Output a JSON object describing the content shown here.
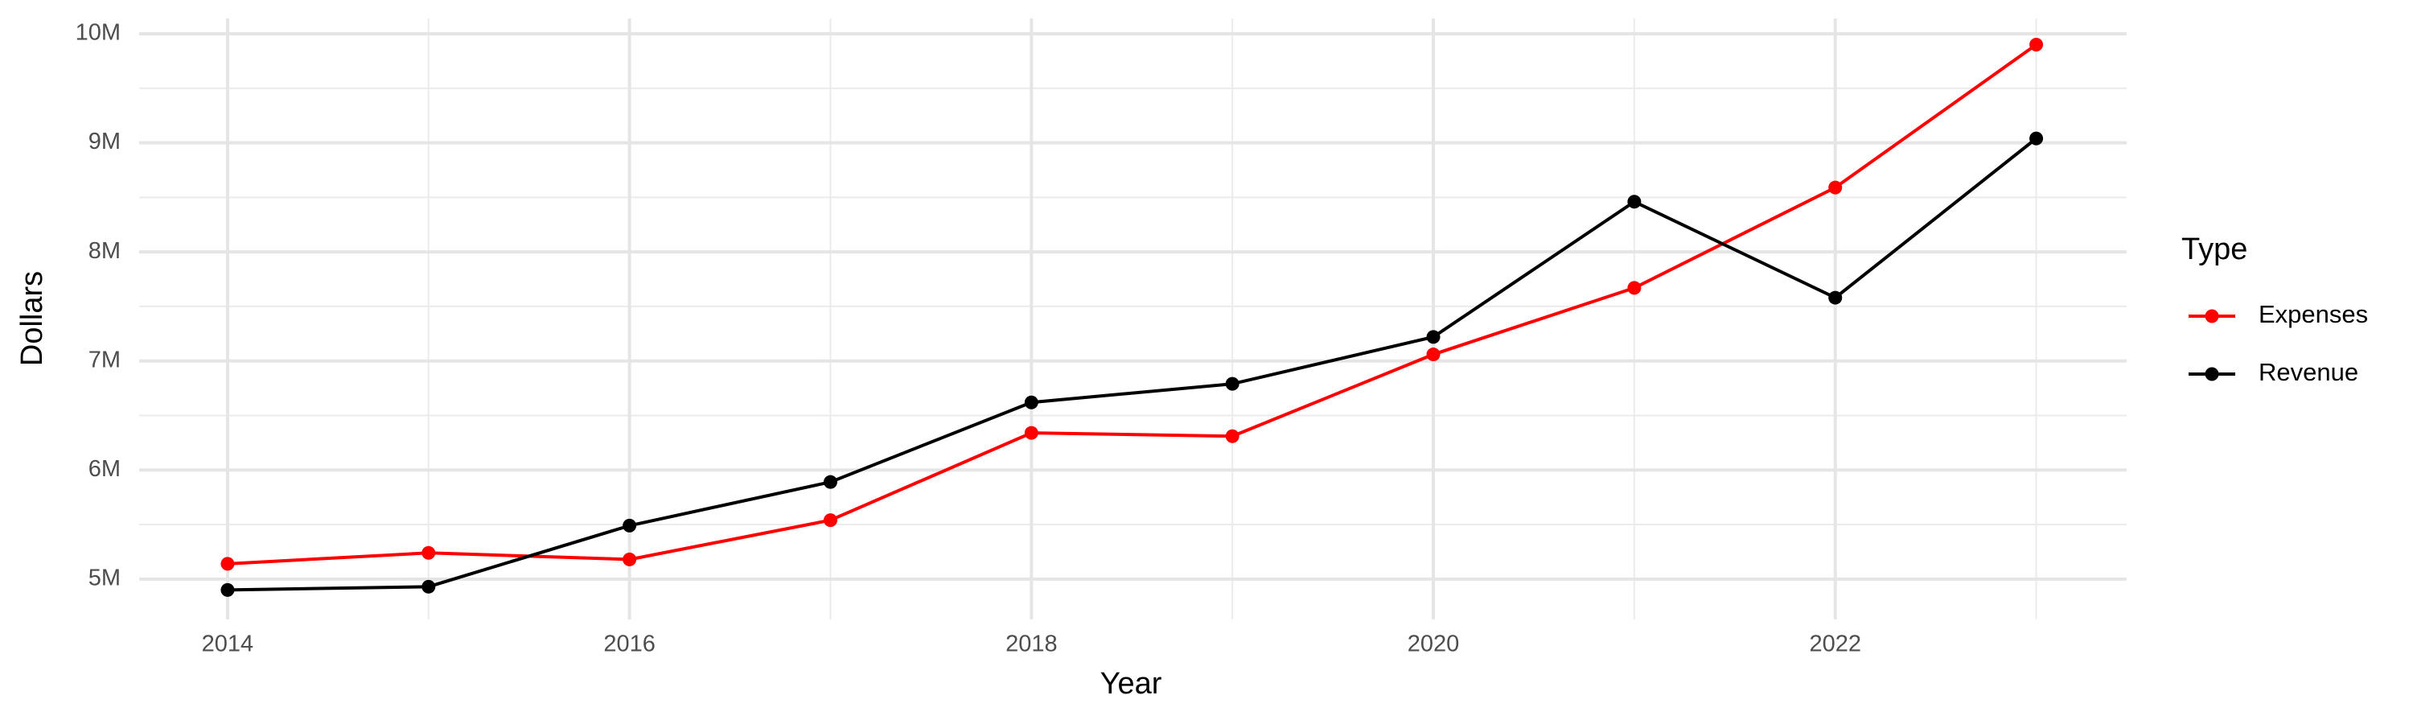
{
  "chart_data": {
    "type": "line",
    "x_label": "Year",
    "y_label": "Dollars",
    "legend_title": "Type",
    "legend": "right",
    "x": [
      2014,
      2015,
      2016,
      2017,
      2018,
      2019,
      2020,
      2021,
      2022,
      2023
    ],
    "series": [
      {
        "name": "Expenses",
        "color": "#ff0000",
        "values": [
          5140000,
          5240000,
          5180000,
          5540000,
          6340000,
          6310000,
          7060000,
          7670000,
          8590000,
          9900000
        ]
      },
      {
        "name": "Revenue",
        "color": "#000000",
        "values": [
          4900000,
          4930000,
          5490000,
          5890000,
          6620000,
          6790000,
          7220000,
          8460000,
          7580000,
          9040000
        ]
      }
    ],
    "xlim": [
      2013.56,
      2023.45
    ],
    "xticks": [
      2014,
      2016,
      2018,
      2020,
      2022
    ],
    "x_minor_grid": [
      2015,
      2017,
      2019,
      2021,
      2023
    ],
    "ylim": [
      4630000,
      10140000
    ],
    "yticks": [
      {
        "value": 5000000,
        "label": "5M"
      },
      {
        "value": 6000000,
        "label": "6M"
      },
      {
        "value": 7000000,
        "label": "7M"
      },
      {
        "value": 8000000,
        "label": "8M"
      },
      {
        "value": 9000000,
        "label": "9M"
      },
      {
        "value": 10000000,
        "label": "10M"
      }
    ],
    "y_minor_grid": [
      5500000,
      6500000,
      7500000,
      8500000,
      9500000
    ],
    "grid": true
  }
}
